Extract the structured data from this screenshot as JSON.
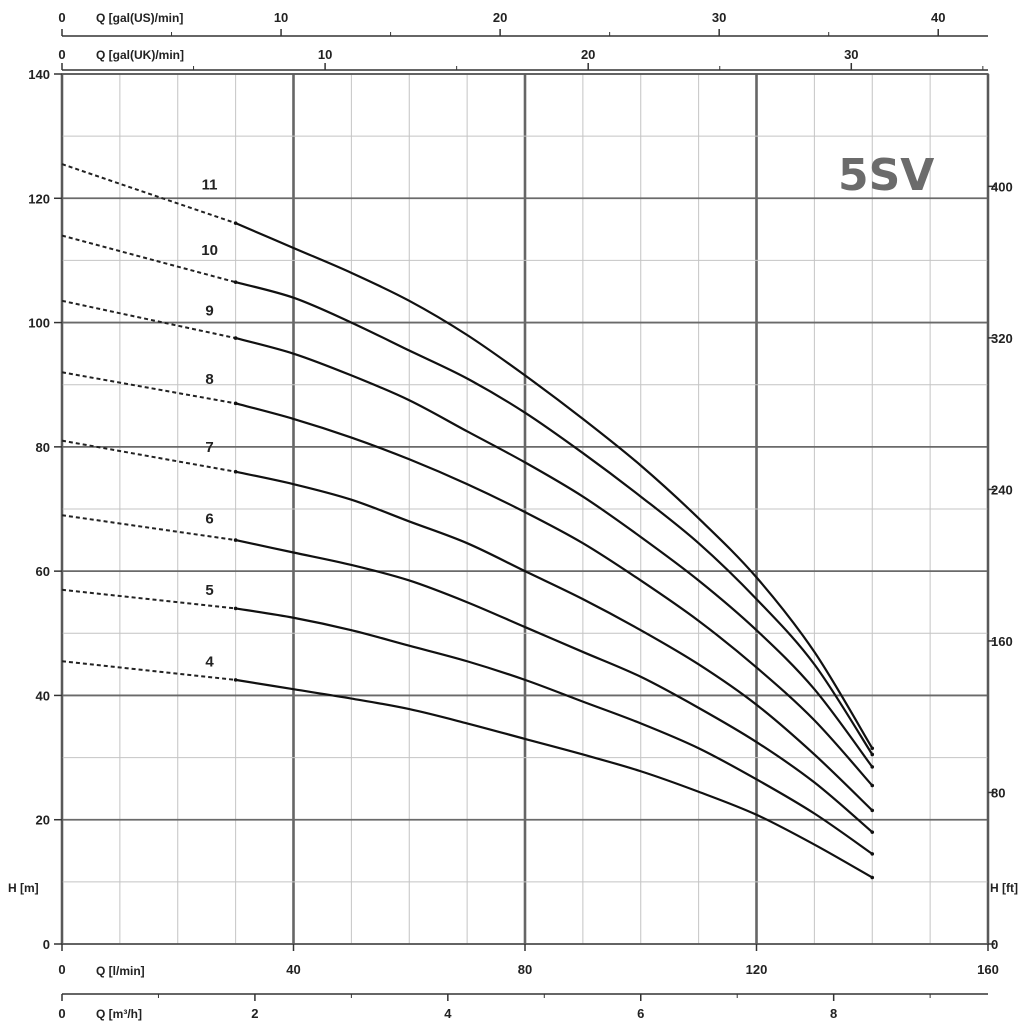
{
  "chart_data": {
    "type": "line",
    "title": "5SV",
    "ylabel": "H [m]",
    "ylabel_right": "H [ft]",
    "xlabel": "Q [l/min]",
    "xlim": [
      0,
      160
    ],
    "ylim": [
      0,
      140
    ],
    "grid": true,
    "x_ticks": [
      "0",
      "40",
      "80",
      "120",
      "160"
    ],
    "y_ticks": [
      "0",
      "20",
      "40",
      "60",
      "80",
      "100",
      "120",
      "140"
    ],
    "secondary_axes": {
      "right_ft": {
        "label": "H [ft]",
        "ticks": [
          "0",
          "80",
          "160",
          "240",
          "320",
          "400"
        ]
      },
      "bottom_m3h": {
        "label": "Q [m³/h]",
        "ticks": [
          "0",
          "2",
          "4",
          "6",
          "8"
        ]
      },
      "top_us": {
        "label": "Q [gal(US)/min]",
        "ticks": [
          "0",
          "10",
          "20",
          "30",
          "40"
        ]
      },
      "top_uk": {
        "label": "Q [gal(UK)/min]",
        "ticks": [
          "0",
          "10",
          "20",
          "30"
        ]
      }
    },
    "series": [
      {
        "name": "4",
        "dashed": {
          "x": [
            0,
            30
          ],
          "y": [
            45.5,
            42.5
          ]
        },
        "x": [
          30,
          40,
          50,
          60,
          70,
          80,
          90,
          100,
          110,
          120,
          130,
          140
        ],
        "y": [
          42.5,
          41.0,
          39.5,
          37.8,
          35.5,
          33.0,
          30.5,
          27.8,
          24.5,
          20.8,
          16.0,
          10.7
        ]
      },
      {
        "name": "5",
        "dashed": {
          "x": [
            0,
            30
          ],
          "y": [
            57.0,
            54.0
          ]
        },
        "x": [
          30,
          40,
          50,
          60,
          70,
          80,
          90,
          100,
          110,
          120,
          130,
          140
        ],
        "y": [
          54.0,
          52.5,
          50.5,
          48.0,
          45.5,
          42.5,
          39.0,
          35.5,
          31.5,
          26.5,
          21.0,
          14.5
        ]
      },
      {
        "name": "6",
        "dashed": {
          "x": [
            0,
            30
          ],
          "y": [
            69.0,
            65.0
          ]
        },
        "x": [
          30,
          40,
          50,
          60,
          70,
          80,
          90,
          100,
          110,
          120,
          130,
          140
        ],
        "y": [
          65.0,
          63.0,
          61.0,
          58.5,
          55.0,
          51.0,
          47.0,
          43.0,
          38.0,
          32.5,
          26.0,
          18.0
        ]
      },
      {
        "name": "7",
        "dashed": {
          "x": [
            0,
            30
          ],
          "y": [
            81.0,
            76.0
          ]
        },
        "x": [
          30,
          40,
          50,
          60,
          70,
          80,
          90,
          100,
          110,
          120,
          130,
          140
        ],
        "y": [
          76.0,
          74.0,
          71.5,
          68.0,
          64.5,
          60.0,
          55.5,
          50.5,
          45.0,
          38.5,
          30.5,
          21.5
        ]
      },
      {
        "name": "8",
        "dashed": {
          "x": [
            0,
            30
          ],
          "y": [
            92.0,
            87.0
          ]
        },
        "x": [
          30,
          40,
          50,
          60,
          70,
          80,
          90,
          100,
          110,
          120,
          130,
          140
        ],
        "y": [
          87.0,
          84.5,
          81.5,
          78.0,
          74.0,
          69.5,
          64.5,
          58.5,
          52.0,
          44.5,
          36.0,
          25.5
        ]
      },
      {
        "name": "9",
        "dashed": {
          "x": [
            0,
            30
          ],
          "y": [
            103.5,
            97.5
          ]
        },
        "x": [
          30,
          40,
          50,
          60,
          70,
          80,
          90,
          100,
          110,
          120,
          130,
          140
        ],
        "y": [
          97.5,
          95.0,
          91.5,
          87.5,
          82.5,
          77.5,
          72.0,
          65.5,
          58.5,
          50.5,
          41.0,
          28.5
        ]
      },
      {
        "name": "10",
        "dashed": {
          "x": [
            0,
            30
          ],
          "y": [
            114.0,
            106.5
          ]
        },
        "x": [
          30,
          40,
          50,
          60,
          70,
          80,
          90,
          100,
          110,
          120,
          130,
          140
        ],
        "y": [
          106.5,
          104.0,
          100.0,
          95.5,
          91.0,
          85.5,
          79.0,
          72.0,
          64.5,
          55.5,
          45.0,
          30.5
        ]
      },
      {
        "name": "11",
        "dashed": {
          "x": [
            0,
            30
          ],
          "y": [
            125.5,
            116.0
          ]
        },
        "x": [
          30,
          40,
          50,
          60,
          70,
          80,
          90,
          100,
          110,
          120,
          130,
          140
        ],
        "y": [
          116.0,
          112.0,
          108.0,
          103.5,
          98.0,
          91.5,
          84.5,
          77.0,
          68.5,
          59.0,
          47.0,
          31.5
        ]
      }
    ]
  }
}
